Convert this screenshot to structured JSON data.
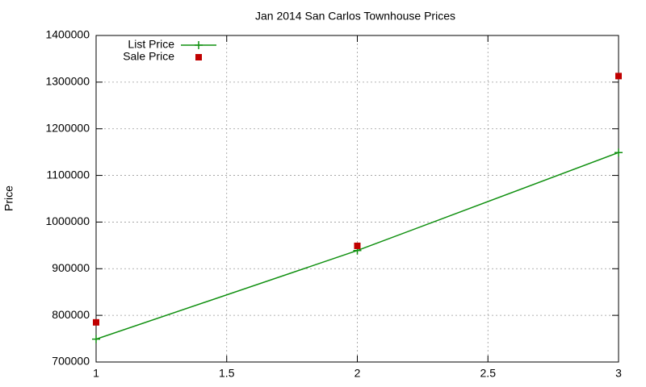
{
  "chart_data": {
    "type": "line",
    "title": "Jan 2014 San Carlos Townhouse Prices",
    "y_label": "Price",
    "x": [
      1,
      2,
      3
    ],
    "series": [
      {
        "name": "List Price",
        "color": "#109010",
        "style": "linespoints",
        "values": [
          749000,
          939000,
          1149000
        ]
      },
      {
        "name": "Sale Price",
        "color": "#c00000",
        "style": "points",
        "values": [
          785000,
          949000,
          1313000
        ]
      }
    ],
    "xlim": [
      1,
      3
    ],
    "xticks": [
      1,
      1.5,
      2,
      2.5,
      3
    ],
    "ylim": [
      700000,
      1400000
    ],
    "yticks": [
      700000,
      800000,
      900000,
      1000000,
      1100000,
      1200000,
      1300000,
      1400000
    ],
    "grid": true,
    "legend": "top-left"
  }
}
